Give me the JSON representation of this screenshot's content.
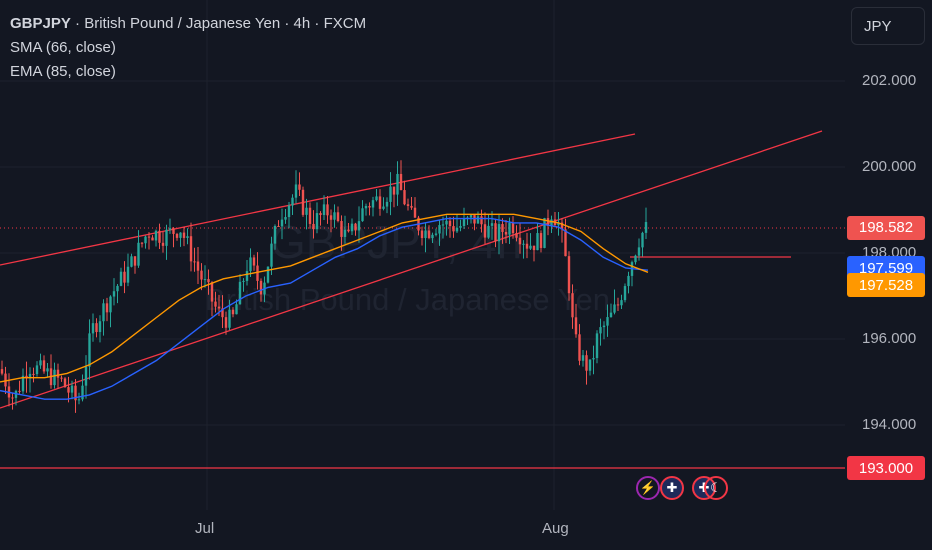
{
  "legend": {
    "symbol": "GBPJPY",
    "description": "British Pound / Japanese Yen",
    "interval": "4h",
    "exchange": "FXCM",
    "sma_label": "SMA (66, close)",
    "ema_label": "EMA (85, close)"
  },
  "watermark": {
    "symbol": "GBPJPY, 4h",
    "description": "British Pound / Japanese Yen"
  },
  "currency_button": "JPY",
  "colors": {
    "background": "#131722",
    "up": "#26a69a",
    "down": "#ef5350",
    "trendline": "#f23645",
    "sma": "#2962ff",
    "ema": "#ff9800",
    "axis_text": "#b2b5be"
  },
  "icons": [
    "lightning-event-icon",
    "uk-flag-event-icon",
    "uk-flag-event-icon",
    "moon-event-icon"
  ],
  "chart_data": {
    "type": "candlestick",
    "x_ticks": [
      "Jul",
      "Aug"
    ],
    "y_ticks": [
      "202.000",
      "200.000",
      "198.000",
      "196.000",
      "194.000"
    ],
    "ylim": [
      192.5,
      203.5
    ],
    "price_badges": [
      {
        "label": "198.582",
        "value": 198.582,
        "kind": "last-price"
      },
      {
        "label": "197.599",
        "value": 197.599,
        "kind": "sma"
      },
      {
        "label": "197.528",
        "value": 197.528,
        "kind": "ema"
      },
      {
        "label": "193.000",
        "value": 193.0,
        "kind": "horizontal-line"
      }
    ],
    "series": [
      {
        "name": "SMA (66, close)",
        "values": [
          194.8,
          194.7,
          194.6,
          194.6,
          194.7,
          194.9,
          195.2,
          195.5,
          195.9,
          196.3,
          196.7,
          197.0,
          197.2,
          197.3,
          197.6,
          197.9,
          198.1,
          198.4,
          198.6,
          198.7,
          198.8,
          198.8,
          198.8,
          198.7,
          198.7,
          198.6,
          198.3,
          197.9,
          197.65,
          197.6
        ]
      },
      {
        "name": "EMA (85, close)",
        "values": [
          195.0,
          195.1,
          195.1,
          195.2,
          195.4,
          195.7,
          196.1,
          196.5,
          196.9,
          197.2,
          197.4,
          197.5,
          197.6,
          197.7,
          197.9,
          198.1,
          198.3,
          198.5,
          198.7,
          198.8,
          198.9,
          198.9,
          198.9,
          198.9,
          198.8,
          198.7,
          198.5,
          198.1,
          197.75,
          197.55
        ]
      }
    ],
    "grid": true
  }
}
